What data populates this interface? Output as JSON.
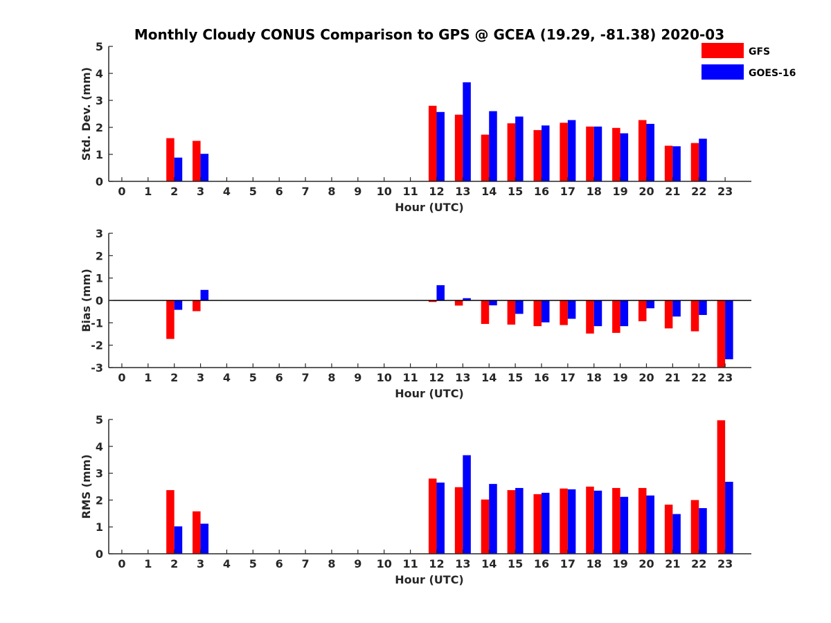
{
  "title": "Monthly Cloudy CONUS Comparison to GPS @ GCEA (19.29, -81.38) 2020-03",
  "colors": {
    "GFS": "#ff0000",
    "GOES-16": "#0000ff"
  },
  "legend": {
    "placement": "top-right",
    "entries": [
      "GFS",
      "GOES-16"
    ]
  },
  "chart_data": [
    {
      "type": "bar",
      "title": "Monthly Cloudy CONUS Comparison to GPS @ GCEA (19.29, -81.38) 2020-03",
      "xlabel": "Hour (UTC)",
      "ylabel": "Std. Dev. (mm)",
      "ylim": [
        0,
        5
      ],
      "yticks": [
        "0",
        "1",
        "2",
        "3",
        "4",
        "5"
      ],
      "categories": [
        "0",
        "1",
        "2",
        "3",
        "4",
        "5",
        "6",
        "7",
        "8",
        "9",
        "10",
        "11",
        "12",
        "13",
        "14",
        "15",
        "16",
        "17",
        "18",
        "19",
        "20",
        "21",
        "22",
        "23"
      ],
      "series": [
        {
          "name": "GFS",
          "color": "#ff0000",
          "values": [
            null,
            null,
            1.6,
            1.5,
            null,
            null,
            null,
            null,
            null,
            null,
            null,
            null,
            2.8,
            2.47,
            1.73,
            2.15,
            1.9,
            2.17,
            2.03,
            1.98,
            2.27,
            1.32,
            1.42,
            null
          ]
        },
        {
          "name": "GOES-16",
          "color": "#0000ff",
          "values": [
            null,
            null,
            0.88,
            1.02,
            null,
            null,
            null,
            null,
            null,
            null,
            null,
            null,
            2.57,
            3.67,
            2.6,
            2.4,
            2.07,
            2.27,
            2.03,
            1.78,
            2.13,
            1.3,
            1.58,
            null
          ]
        }
      ]
    },
    {
      "type": "bar",
      "xlabel": "Hour (UTC)",
      "ylabel": "Bias (mm)",
      "ylim": [
        -3,
        3
      ],
      "yticks": [
        "-3",
        "-2",
        "-1",
        "0",
        "1",
        "2",
        "3"
      ],
      "zero_line": true,
      "categories": [
        "0",
        "1",
        "2",
        "3",
        "4",
        "5",
        "6",
        "7",
        "8",
        "9",
        "10",
        "11",
        "12",
        "13",
        "14",
        "15",
        "16",
        "17",
        "18",
        "19",
        "20",
        "21",
        "22",
        "23"
      ],
      "series": [
        {
          "name": "GFS",
          "color": "#ff0000",
          "values": [
            null,
            null,
            -1.72,
            -0.48,
            null,
            null,
            null,
            null,
            null,
            null,
            null,
            null,
            -0.07,
            -0.23,
            -1.05,
            -1.08,
            -1.15,
            -1.1,
            -1.48,
            -1.45,
            -0.93,
            -1.25,
            -1.38,
            -3.0
          ]
        },
        {
          "name": "GOES-16",
          "color": "#0000ff",
          "values": [
            null,
            null,
            -0.42,
            0.47,
            null,
            null,
            null,
            null,
            null,
            null,
            null,
            null,
            0.68,
            0.1,
            -0.22,
            -0.6,
            -0.98,
            -0.82,
            -1.15,
            -1.15,
            -0.35,
            -0.72,
            -0.65,
            -2.63
          ]
        }
      ]
    },
    {
      "type": "bar",
      "xlabel": "Hour (UTC)",
      "ylabel": "RMS (mm)",
      "ylim": [
        0,
        5
      ],
      "yticks": [
        "0",
        "1",
        "2",
        "3",
        "4",
        "5"
      ],
      "categories": [
        "0",
        "1",
        "2",
        "3",
        "4",
        "5",
        "6",
        "7",
        "8",
        "9",
        "10",
        "11",
        "12",
        "13",
        "14",
        "15",
        "16",
        "17",
        "18",
        "19",
        "20",
        "21",
        "22",
        "23"
      ],
      "series": [
        {
          "name": "GFS",
          "color": "#ff0000",
          "values": [
            null,
            null,
            2.37,
            1.58,
            null,
            null,
            null,
            null,
            null,
            null,
            null,
            null,
            2.8,
            2.48,
            2.02,
            2.37,
            2.22,
            2.43,
            2.5,
            2.45,
            2.45,
            1.83,
            2.0,
            4.97
          ]
        },
        {
          "name": "GOES-16",
          "color": "#0000ff",
          "values": [
            null,
            null,
            1.02,
            1.12,
            null,
            null,
            null,
            null,
            null,
            null,
            null,
            null,
            2.65,
            3.67,
            2.6,
            2.45,
            2.27,
            2.4,
            2.35,
            2.12,
            2.17,
            1.48,
            1.7,
            2.68
          ]
        }
      ]
    }
  ]
}
